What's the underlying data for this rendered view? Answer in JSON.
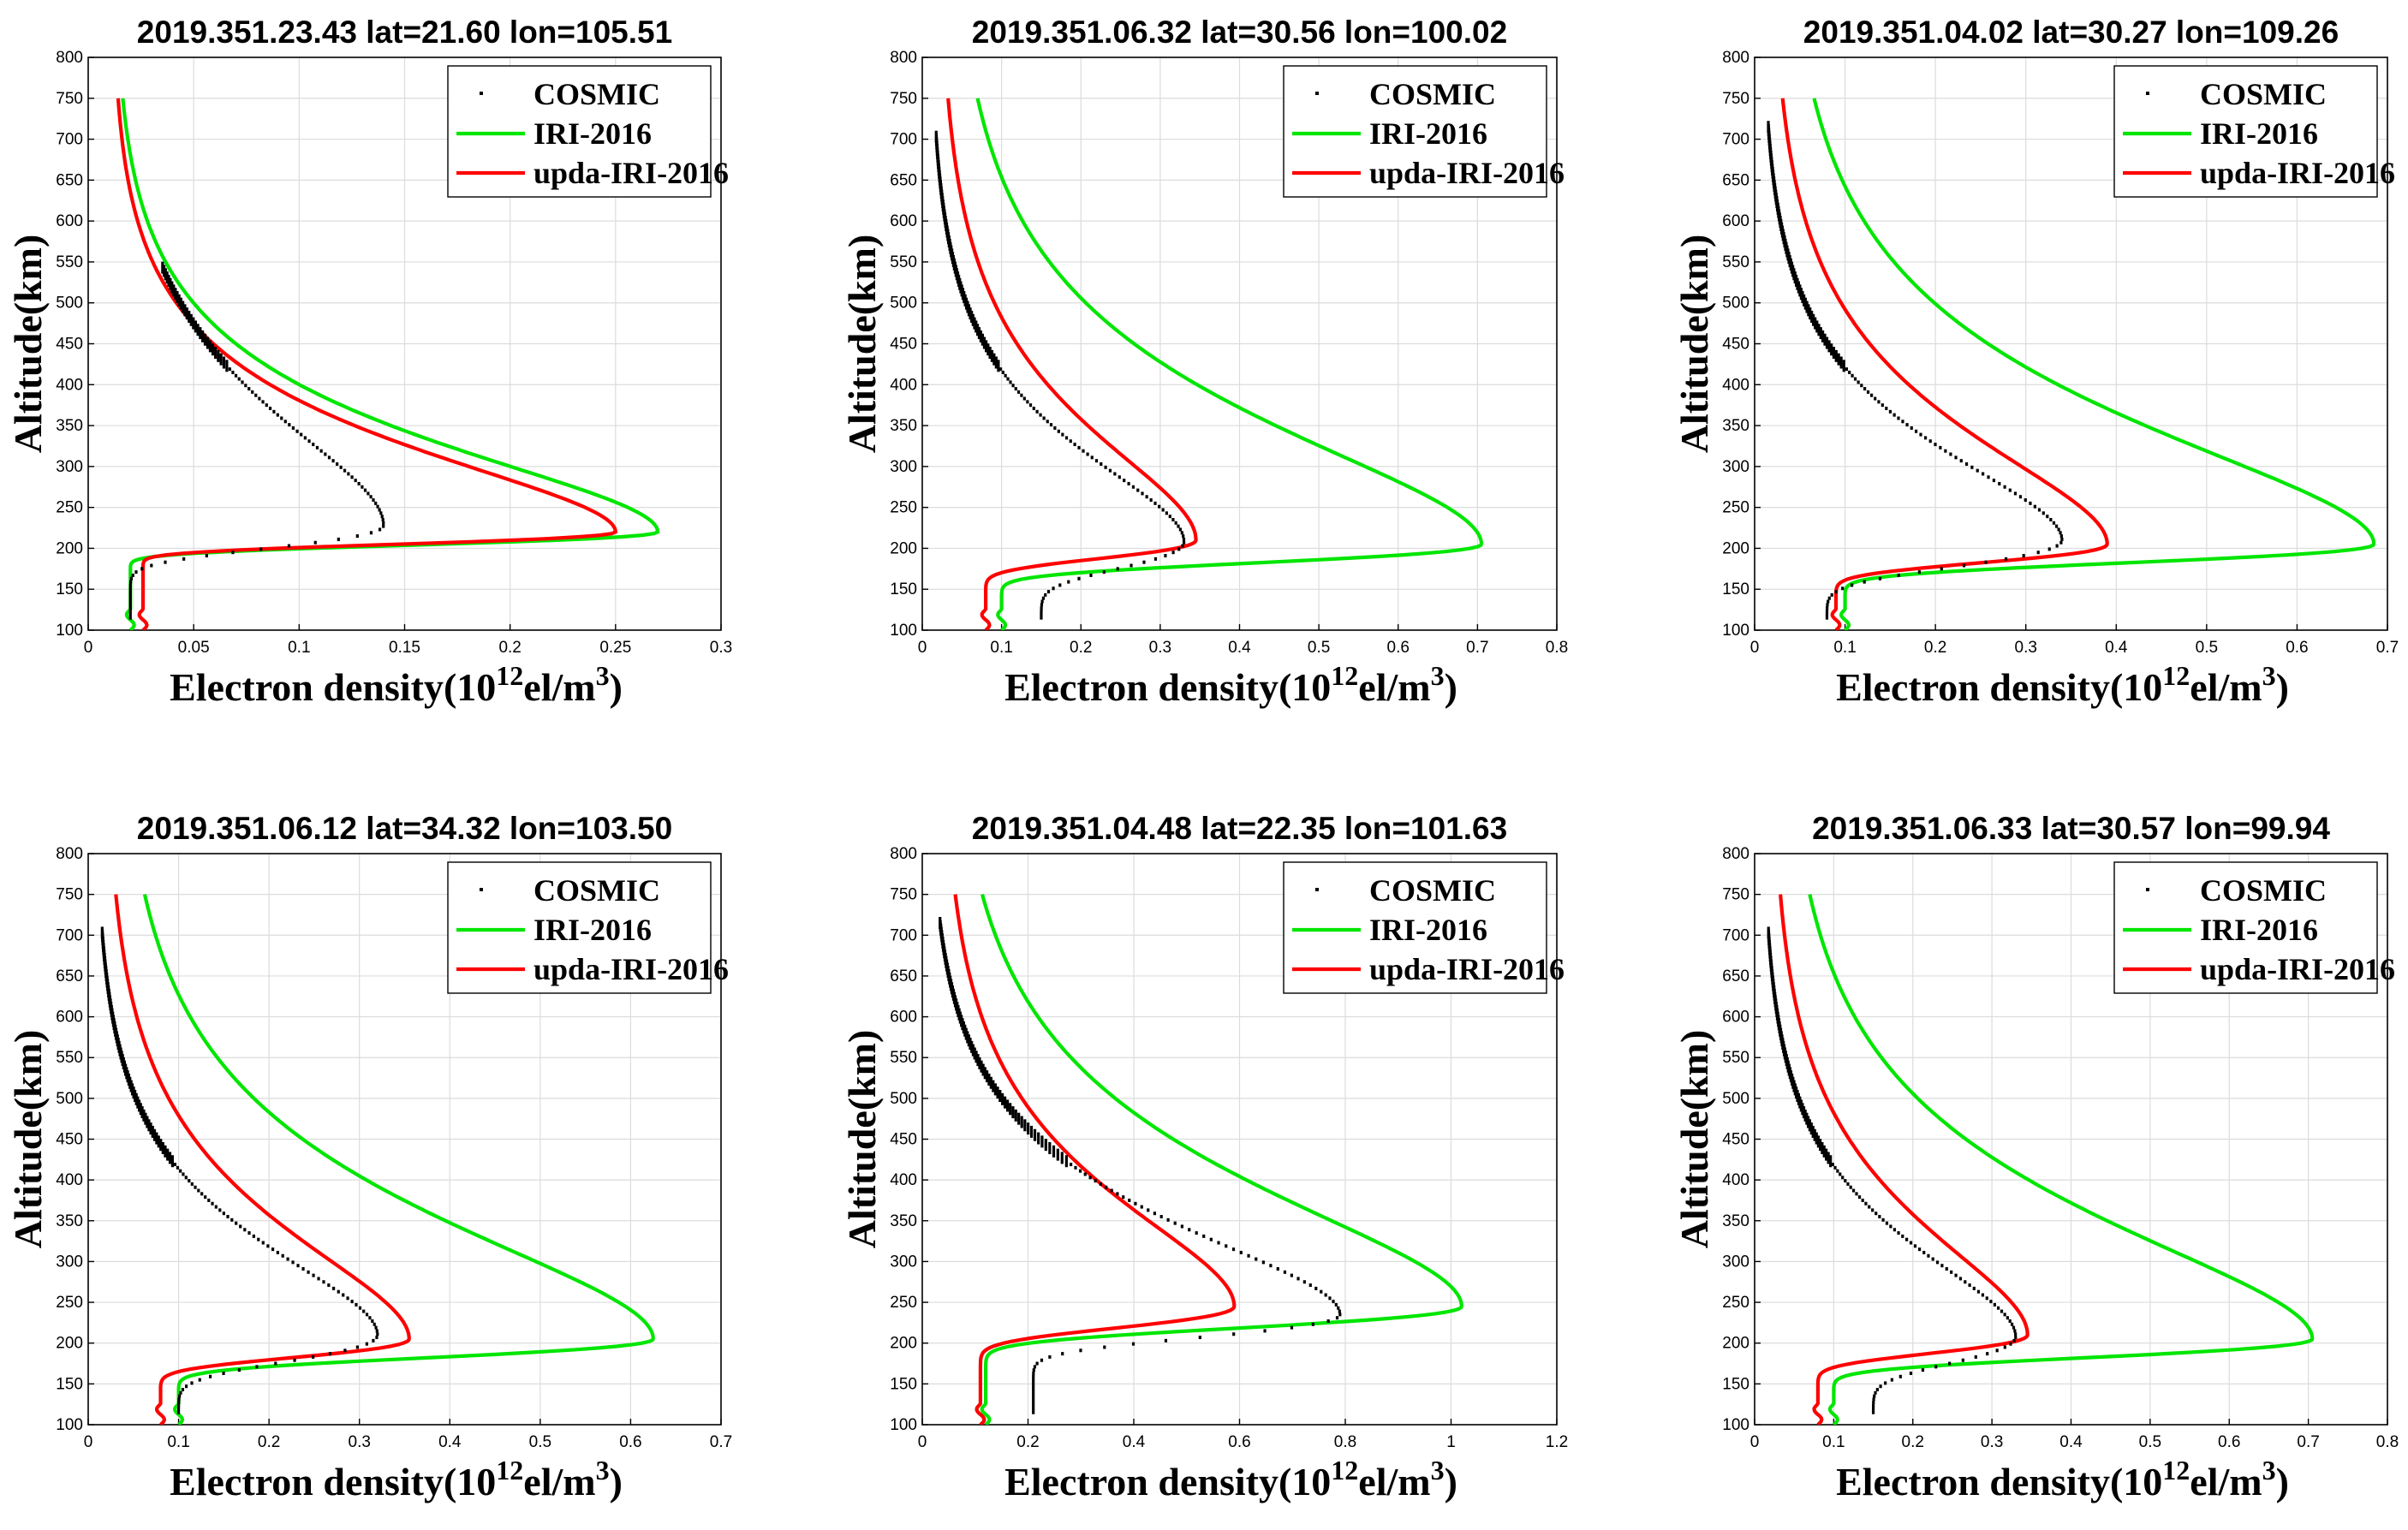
{
  "figure": {
    "ylabel": "Altitude(km)",
    "xlabel_prefix": "Electron density(10",
    "xlabel_exp": "12",
    "xlabel_mid": "el/m",
    "xlabel_sup": "3",
    "xlabel_end": ")",
    "legend": [
      "COSMIC",
      "IRI-2016",
      "upda-IRI-2016"
    ],
    "colors": {
      "cosmic": "#000000",
      "iri": "#00e600",
      "upda": "#ff0000"
    }
  },
  "chart_data": [
    {
      "type": "line",
      "title": "2019.351.23.43    lat=21.60    lon=105.51",
      "xlim": [
        0,
        0.3
      ],
      "ylim": [
        100,
        800
      ],
      "xticks": [
        "0",
        "0.05",
        "0.1",
        "0.15",
        "0.2",
        "0.25",
        "0.3"
      ],
      "yticks": [
        "100",
        "150",
        "200",
        "250",
        "300",
        "350",
        "400",
        "450",
        "500",
        "550",
        "600",
        "650",
        "700",
        "750",
        "800"
      ],
      "series": [
        {
          "name": "IRI-2016",
          "kind": "chapman",
          "peak_x": 0.27,
          "peak_alt": 220,
          "bottom_x": 0.02,
          "top_x": 0.012,
          "hs": 58,
          "hb": 17
        },
        {
          "name": "upda-IRI-2016",
          "kind": "chapman",
          "peak_x": 0.25,
          "peak_alt": 220,
          "bottom_x": 0.026,
          "top_x": 0.011,
          "hs": 55,
          "hb": 16
        },
        {
          "name": "COSMIC",
          "kind": "chapman",
          "peak_x": 0.14,
          "peak_alt": 228,
          "bottom_x": 0.02,
          "top_x": 0.009,
          "hs": 75,
          "hb": 30,
          "ymin": 115,
          "ymax": 545
        }
      ]
    },
    {
      "type": "line",
      "title": "2019.351.06.32    lat=30.56    lon=100.02",
      "xlim": [
        0,
        0.8
      ],
      "ylim": [
        100,
        800
      ],
      "xticks": [
        "0",
        "0.1",
        "0.2",
        "0.3",
        "0.4",
        "0.5",
        "0.6",
        "0.7",
        "0.8"
      ],
      "yticks": [
        "100",
        "150",
        "200",
        "250",
        "300",
        "350",
        "400",
        "450",
        "500",
        "550",
        "600",
        "650",
        "700",
        "750",
        "800"
      ],
      "series": [
        {
          "name": "IRI-2016",
          "kind": "chapman",
          "peak_x": 0.705,
          "peak_alt": 205,
          "bottom_x": 0.1,
          "top_x": 0.033,
          "hs": 80,
          "hb": 24
        },
        {
          "name": "upda-IRI-2016",
          "kind": "chapman",
          "peak_x": 0.345,
          "peak_alt": 210,
          "bottom_x": 0.08,
          "top_x": 0.02,
          "hs": 72,
          "hb": 24
        },
        {
          "name": "COSMIC",
          "kind": "chapman",
          "peak_x": 0.33,
          "peak_alt": 208,
          "bottom_x": 0.15,
          "top_x": 0.009,
          "hs": 60,
          "hb": 35,
          "ymin": 115,
          "ymax": 705
        }
      ]
    },
    {
      "type": "line",
      "title": "2019.351.04.02    lat=30.27    lon=109.26",
      "xlim": [
        0,
        0.7
      ],
      "ylim": [
        100,
        800
      ],
      "xticks": [
        "0",
        "0.1",
        "0.2",
        "0.3",
        "0.4",
        "0.5",
        "0.6",
        "0.7"
      ],
      "yticks": [
        "100",
        "150",
        "200",
        "250",
        "300",
        "350",
        "400",
        "450",
        "500",
        "550",
        "600",
        "650",
        "700",
        "750",
        "800"
      ],
      "series": [
        {
          "name": "IRI-2016",
          "kind": "chapman",
          "peak_x": 0.685,
          "peak_alt": 205,
          "bottom_x": 0.1,
          "top_x": 0.03,
          "hs": 80,
          "hb": 24
        },
        {
          "name": "upda-IRI-2016",
          "kind": "chapman",
          "peak_x": 0.39,
          "peak_alt": 205,
          "bottom_x": 0.09,
          "top_x": 0.017,
          "hs": 72,
          "hb": 24
        },
        {
          "name": "COSMIC",
          "kind": "chapman",
          "peak_x": 0.34,
          "peak_alt": 210,
          "bottom_x": 0.08,
          "top_x": 0.007,
          "hs": 60,
          "hb": 35,
          "ymin": 115,
          "ymax": 715
        }
      ]
    },
    {
      "type": "line",
      "title": "2019.351.06.12    lat=34.32    lon=103.50",
      "xlim": [
        0,
        0.7
      ],
      "ylim": [
        100,
        800
      ],
      "xticks": [
        "0",
        "0.1",
        "0.2",
        "0.3",
        "0.4",
        "0.5",
        "0.6",
        "0.7"
      ],
      "yticks": [
        "100",
        "150",
        "200",
        "250",
        "300",
        "350",
        "400",
        "450",
        "500",
        "550",
        "600",
        "650",
        "700",
        "750",
        "800"
      ],
      "series": [
        {
          "name": "IRI-2016",
          "kind": "chapman",
          "peak_x": 0.625,
          "peak_alt": 205,
          "bottom_x": 0.1,
          "top_x": 0.03,
          "hs": 80,
          "hb": 24
        },
        {
          "name": "upda-IRI-2016",
          "kind": "chapman",
          "peak_x": 0.355,
          "peak_alt": 205,
          "bottom_x": 0.08,
          "top_x": 0.018,
          "hs": 72,
          "hb": 24
        },
        {
          "name": "COSMIC",
          "kind": "chapman",
          "peak_x": 0.32,
          "peak_alt": 210,
          "bottom_x": 0.1,
          "top_x": 0.007,
          "hs": 60,
          "hb": 35,
          "ymin": 115,
          "ymax": 705
        }
      ]
    },
    {
      "type": "line",
      "title": "2019.351.04.48    lat=22.35    lon=101.63",
      "xlim": [
        0,
        1.2
      ],
      "ylim": [
        100,
        800
      ],
      "xticks": [
        "0",
        "0.2",
        "0.4",
        "0.6",
        "0.8",
        "1",
        "1.2"
      ],
      "yticks": [
        "100",
        "150",
        "200",
        "250",
        "300",
        "350",
        "400",
        "450",
        "500",
        "550",
        "600",
        "650",
        "700",
        "750",
        "800"
      ],
      "series": [
        {
          "name": "IRI-2016",
          "kind": "chapman",
          "peak_x": 1.02,
          "peak_alt": 245,
          "bottom_x": 0.12,
          "top_x": 0.045,
          "hs": 80,
          "hb": 28
        },
        {
          "name": "upda-IRI-2016",
          "kind": "chapman",
          "peak_x": 0.59,
          "peak_alt": 245,
          "bottom_x": 0.11,
          "top_x": 0.035,
          "hs": 72,
          "hb": 28
        },
        {
          "name": "COSMIC",
          "kind": "chapman",
          "peak_x": 0.79,
          "peak_alt": 235,
          "bottom_x": 0.21,
          "top_x": 0.01,
          "hs": 60,
          "hb": 30,
          "ymin": 115,
          "ymax": 715
        }
      ]
    },
    {
      "type": "line",
      "title": "2019.351.06.33    lat=30.57    lon=99.94",
      "xlim": [
        0,
        0.8
      ],
      "ylim": [
        100,
        800
      ],
      "xticks": [
        "0",
        "0.1",
        "0.2",
        "0.3",
        "0.4",
        "0.5",
        "0.6",
        "0.7",
        "0.8"
      ],
      "yticks": [
        "100",
        "150",
        "200",
        "250",
        "300",
        "350",
        "400",
        "450",
        "500",
        "550",
        "600",
        "650",
        "700",
        "750",
        "800"
      ],
      "series": [
        {
          "name": "IRI-2016",
          "kind": "chapman",
          "peak_x": 0.705,
          "peak_alt": 205,
          "bottom_x": 0.1,
          "top_x": 0.033,
          "hs": 80,
          "hb": 24
        },
        {
          "name": "upda-IRI-2016",
          "kind": "chapman",
          "peak_x": 0.345,
          "peak_alt": 210,
          "bottom_x": 0.08,
          "top_x": 0.02,
          "hs": 72,
          "hb": 24
        },
        {
          "name": "COSMIC",
          "kind": "chapman",
          "peak_x": 0.33,
          "peak_alt": 208,
          "bottom_x": 0.15,
          "top_x": 0.009,
          "hs": 60,
          "hb": 35,
          "ymin": 115,
          "ymax": 705
        }
      ]
    }
  ]
}
